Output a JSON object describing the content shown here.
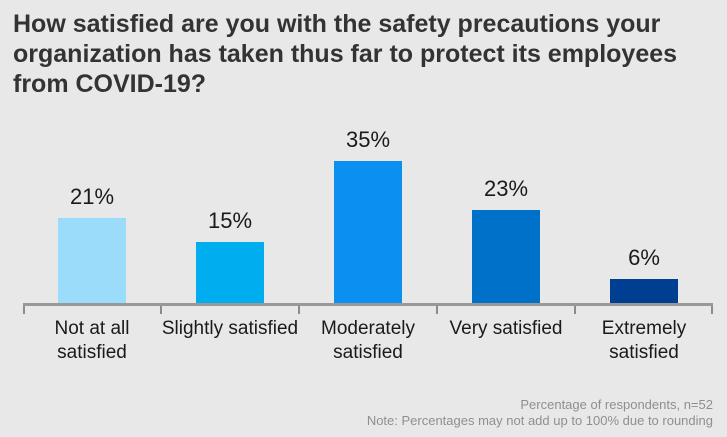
{
  "title": "How satisfied are you with the safety precautions your organization has taken thus far to protect its employees from COVID-19?",
  "chart_data": {
    "type": "bar",
    "title": "How satisfied are you with the safety precautions your organization has taken thus far to protect its employees from COVID-19?",
    "categories": [
      "Not at all satisfied",
      "Slightly satisfied",
      "Moderately satisfied",
      "Very satisfied",
      "Extremely satisfied"
    ],
    "values": [
      21,
      15,
      35,
      23,
      6
    ],
    "value_labels": [
      "21%",
      "15%",
      "35%",
      "23%",
      "6%"
    ],
    "bar_colors": [
      "#9BDCFA",
      "#00ADEE",
      "#0B90F1",
      "#0071C9",
      "#003E92"
    ],
    "unit": "%",
    "xlabel": "",
    "ylabel": "",
    "ylim": [
      0,
      35
    ],
    "grid": false,
    "legend_position": "none",
    "annotations": [
      "Percentage of respondents, n=52",
      "Note: Percentages may not add up to 100% due to rounding"
    ]
  },
  "footer": {
    "source_note": "Percentage of respondents, n=52",
    "rounding_note": "Note: Percentages may not add up to 100% due to rounding"
  },
  "colors": {
    "background": "#E8E8E8",
    "axis_line": "#999999",
    "tick": "#8C8C8C",
    "title_text": "#333333",
    "label_text": "#1A1A1A",
    "note_text": "#8F8F8F"
  }
}
